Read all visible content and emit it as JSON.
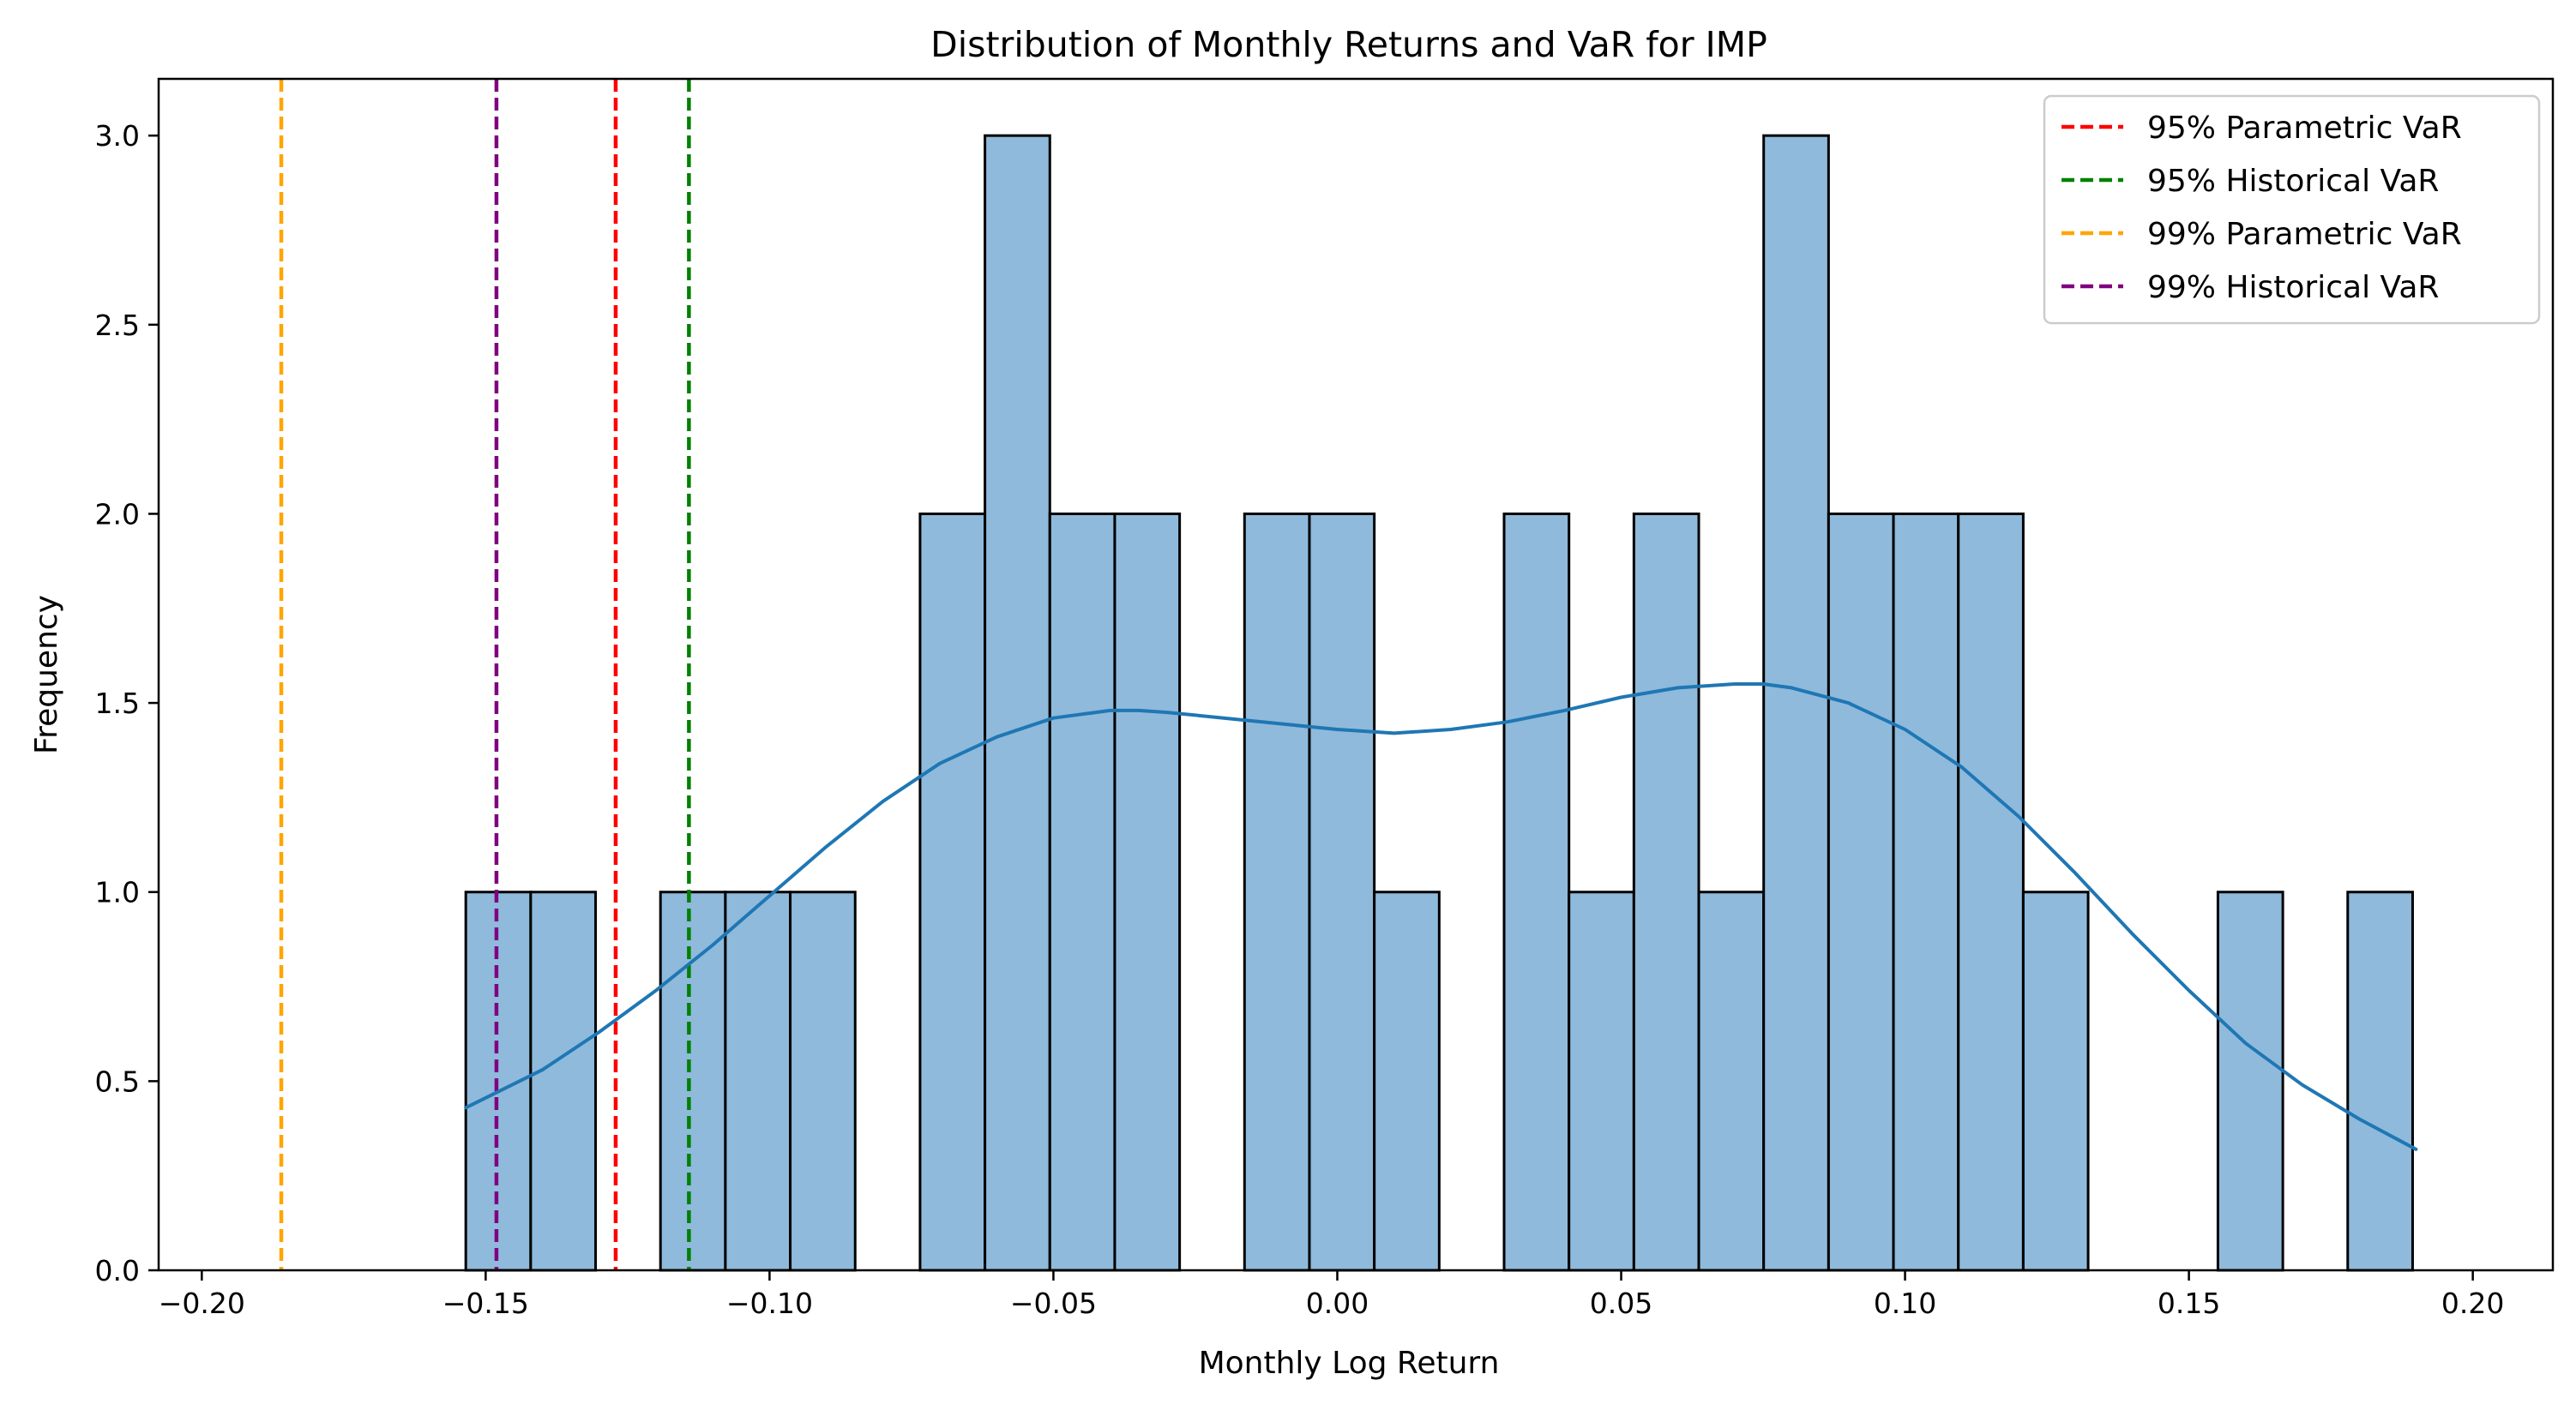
{
  "chart_data": {
    "type": "bar",
    "title": "Distribution of Monthly Returns and VaR for IMP",
    "xlabel": "Monthly Log Return",
    "ylabel": "Frequency",
    "xlim": [
      -0.2076,
      0.2141
    ],
    "ylim": [
      0,
      3.15
    ],
    "x_ticks": [
      -0.2,
      -0.15,
      -0.1,
      -0.05,
      0.0,
      0.05,
      0.1,
      0.15,
      0.2
    ],
    "x_tick_labels": [
      "−0.20",
      "−0.15",
      "−0.10",
      "−0.05",
      "0.00",
      "0.05",
      "0.10",
      "0.15",
      "0.20"
    ],
    "y_ticks": [
      0,
      0.5,
      1,
      1.5,
      2,
      2.5,
      3
    ],
    "y_tick_labels": [
      "0.0",
      "0.5",
      "1.0",
      "1.5",
      "2.0",
      "2.5",
      "3.0"
    ],
    "grid": false,
    "legend_position": "top-right",
    "histogram": {
      "bin_start": -0.1535,
      "bin_width": 0.01143,
      "counts": [
        1,
        1,
        0,
        1,
        1,
        1,
        0,
        2,
        3,
        2,
        2,
        0,
        2,
        2,
        1,
        0,
        2,
        1,
        2,
        1,
        3,
        2,
        2,
        2,
        1,
        0,
        0,
        1,
        0,
        1
      ],
      "fill_color": "#8fbadb",
      "edge_color": "#000000"
    },
    "kde": {
      "color": "#1f77b4",
      "x": [
        -0.1535,
        -0.14,
        -0.13,
        -0.12,
        -0.11,
        -0.1,
        -0.09,
        -0.08,
        -0.07,
        -0.06,
        -0.05,
        -0.04,
        -0.035,
        -0.03,
        -0.02,
        -0.01,
        0.0,
        0.01,
        0.02,
        0.03,
        0.04,
        0.05,
        0.06,
        0.07,
        0.075,
        0.08,
        0.09,
        0.1,
        0.11,
        0.12,
        0.13,
        0.14,
        0.15,
        0.16,
        0.17,
        0.18,
        0.19
      ],
      "y": [
        0.43,
        0.53,
        0.63,
        0.74,
        0.86,
        0.99,
        1.12,
        1.24,
        1.34,
        1.41,
        1.46,
        1.48,
        1.48,
        1.475,
        1.46,
        1.445,
        1.43,
        1.42,
        1.43,
        1.45,
        1.48,
        1.515,
        1.54,
        1.55,
        1.55,
        1.54,
        1.5,
        1.43,
        1.33,
        1.2,
        1.05,
        0.89,
        0.74,
        0.6,
        0.49,
        0.4,
        0.32
      ]
    },
    "var_lines": [
      {
        "name": "95% Parametric VaR",
        "x": -0.1271,
        "color": "#ff0000"
      },
      {
        "name": "95% Historical VaR",
        "x": -0.1142,
        "color": "#008000"
      },
      {
        "name": "99% Parametric VaR",
        "x": -0.186,
        "color": "#ffa500"
      },
      {
        "name": "99% Historical VaR",
        "x": -0.1481,
        "color": "#800080"
      }
    ]
  }
}
